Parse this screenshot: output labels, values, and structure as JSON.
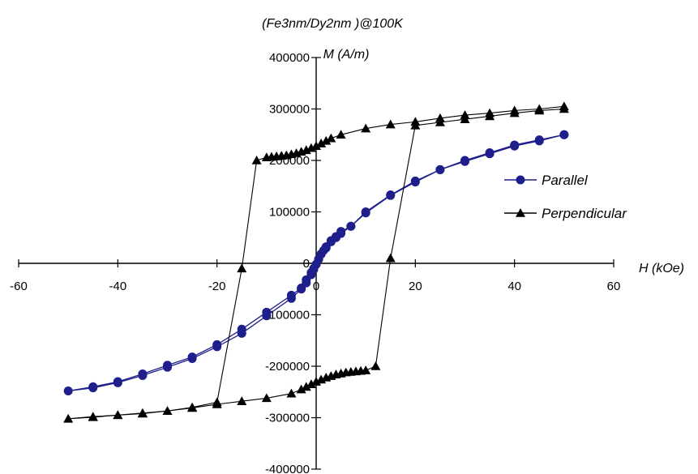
{
  "chart_data": {
    "type": "line",
    "title": "(Fe3nm/Dy2nm )@100K",
    "xlabel": "H (kOe)",
    "ylabel": "M (A/m)",
    "xlim": [
      -60,
      60
    ],
    "ylim": [
      -400000,
      400000
    ],
    "x_ticks": [
      -60,
      -40,
      -20,
      0,
      20,
      40,
      60
    ],
    "x_tick_labels": [
      "-60",
      "-40",
      "-20",
      "0",
      "20",
      "40",
      "60"
    ],
    "y_ticks": [
      -400000,
      -300000,
      -200000,
      -100000,
      0,
      100000,
      200000,
      300000,
      400000
    ],
    "y_tick_labels": [
      "-400000",
      "-300000",
      "-200000",
      "-100000",
      "0",
      "100000",
      "200000",
      "300000",
      "400000"
    ],
    "grid": false,
    "legend_position": "right",
    "series": [
      {
        "name": "Parallel",
        "color": "#1f1f8c",
        "marker": "circle",
        "x": [
          50,
          45,
          40,
          35,
          30,
          25,
          20,
          15,
          10,
          7,
          5,
          4,
          3,
          2,
          1.5,
          1,
          0.5,
          0,
          -0.5,
          -1,
          -2,
          -3,
          -5,
          -10,
          -15,
          -20,
          -25,
          -30,
          -35,
          -40,
          -45,
          -50,
          -45,
          -40,
          -35,
          -30,
          -25,
          -20,
          -15,
          -10,
          -5,
          -3,
          -2,
          -1,
          -0.5,
          0,
          0.5,
          1,
          2,
          3,
          4,
          5,
          7,
          10,
          15,
          20,
          25,
          30,
          35,
          40,
          45,
          50
        ],
        "y": [
          250000,
          240000,
          230000,
          215000,
          200000,
          182000,
          160000,
          133000,
          100000,
          72000,
          58000,
          50000,
          42000,
          32000,
          25000,
          18000,
          8000,
          -2000,
          -10000,
          -18000,
          -32000,
          -48000,
          -62000,
          -95000,
          -128000,
          -158000,
          -182000,
          -198000,
          -215000,
          -230000,
          -240000,
          -248000,
          -242000,
          -232000,
          -218000,
          -202000,
          -185000,
          -162000,
          -136000,
          -102000,
          -68000,
          -50000,
          -38000,
          -22000,
          -12000,
          -2000,
          8000,
          18000,
          30000,
          44000,
          52000,
          62000,
          72000,
          98000,
          132000,
          158000,
          182000,
          198000,
          213000,
          228000,
          238000,
          250000
        ]
      },
      {
        "name": "Perpendicular",
        "color": "#000000",
        "marker": "triangle",
        "x": [
          50,
          45,
          40,
          35,
          30,
          25,
          20,
          15,
          10,
          5,
          3,
          2,
          1,
          0,
          -1,
          -2,
          -3,
          -4,
          -5,
          -6,
          -7,
          -8,
          -9,
          -10,
          -12,
          -15,
          -20,
          -25,
          -30,
          -35,
          -40,
          -45,
          -50,
          -45,
          -40,
          -35,
          -30,
          -25,
          -20,
          -15,
          -10,
          -5,
          -3,
          -2,
          -1,
          0,
          1,
          2,
          3,
          4,
          5,
          6,
          7,
          8,
          9,
          10,
          12,
          15,
          20,
          25,
          30,
          35,
          40,
          45,
          50
        ],
        "y": [
          305000,
          300000,
          297000,
          292000,
          288000,
          282000,
          275000,
          270000,
          262000,
          250000,
          243000,
          238000,
          233000,
          228000,
          224000,
          220000,
          217000,
          214000,
          212000,
          210000,
          209000,
          208000,
          207000,
          206000,
          200000,
          -10000,
          -270000,
          -280000,
          -287000,
          -292000,
          -295000,
          -298000,
          -302000,
          -299000,
          -295000,
          -291000,
          -287000,
          -281000,
          -274000,
          -268000,
          -262000,
          -253000,
          -245000,
          -240000,
          -235000,
          -230000,
          -226000,
          -222000,
          -219000,
          -216000,
          -214000,
          -212000,
          -211000,
          -210000,
          -209000,
          -208000,
          -200000,
          10000,
          268000,
          274000,
          280000,
          286000,
          292000,
          297000,
          300000
        ]
      }
    ]
  }
}
